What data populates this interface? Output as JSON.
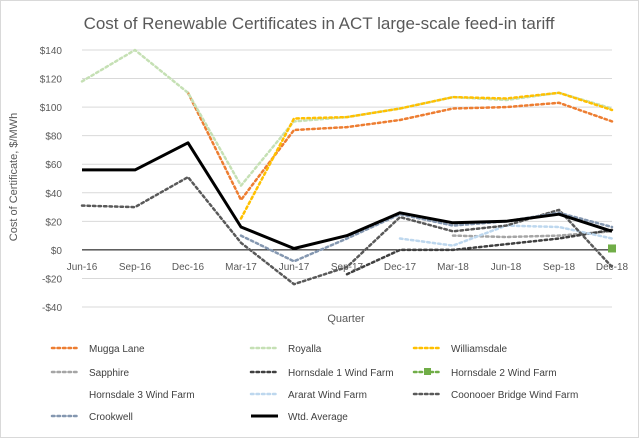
{
  "chart_data": {
    "type": "line",
    "title": "Cost of Renewable Certificates in ACT large-scale feed-in tariff",
    "xlabel": "Quarter",
    "ylabel": "Cost of Certificate, $/MWh",
    "ylim": [
      -40,
      140
    ],
    "yticks": [
      -40,
      -20,
      0,
      20,
      40,
      60,
      80,
      100,
      120,
      140
    ],
    "ytick_labels": [
      "-$40",
      "-$20",
      "$0",
      "$20",
      "$40",
      "$60",
      "$80",
      "$100",
      "$120",
      "$140"
    ],
    "grid": true,
    "legend_position": "bottom",
    "categories": [
      "Jun-16",
      "Sep-16",
      "Dec-16",
      "Mar-17",
      "Jun-17",
      "Sep-17",
      "Dec-17",
      "Mar-18",
      "Jun-18",
      "Sep-18",
      "Dec-18"
    ],
    "series": [
      {
        "name": "Mugga Lane",
        "color": "#ed7d31",
        "style": "dotted",
        "values": [
          null,
          null,
          110,
          35,
          84,
          86,
          91,
          99,
          100,
          103,
          90
        ]
      },
      {
        "name": "Royalla",
        "color": "#c5e0b4",
        "style": "dotted",
        "values": [
          118,
          140,
          110,
          45,
          90,
          93,
          99,
          107,
          105,
          110,
          99
        ]
      },
      {
        "name": "Williamsdale",
        "color": "#ffc000",
        "style": "dotted",
        "values": [
          null,
          null,
          null,
          22,
          92,
          93,
          99,
          107,
          106,
          110,
          98
        ]
      },
      {
        "name": "Sapphire",
        "color": "#a5a5a5",
        "style": "dotted",
        "values": [
          null,
          null,
          null,
          null,
          null,
          null,
          null,
          10,
          9,
          10,
          13
        ]
      },
      {
        "name": "Hornsdale 1 Wind Farm",
        "color": "#404040",
        "style": "dotted",
        "values": [
          null,
          null,
          null,
          null,
          null,
          -17,
          0,
          0,
          4,
          8,
          14
        ]
      },
      {
        "name": "Hornsdale 2 Wind Farm",
        "color": "#70ad47",
        "style": "dotted",
        "values": [
          null,
          null,
          null,
          null,
          null,
          null,
          null,
          null,
          null,
          null,
          1
        ]
      },
      {
        "name": "Hornsdale 3 Wind Farm",
        "color": "#ffffff",
        "style": "dotted",
        "values": [
          null,
          null,
          null,
          null,
          null,
          null,
          null,
          null,
          null,
          null,
          null
        ]
      },
      {
        "name": "Ararat Wind Farm",
        "color": "#bdd7ee",
        "style": "dotted",
        "values": [
          null,
          null,
          null,
          null,
          null,
          null,
          8,
          3,
          17,
          16,
          8
        ]
      },
      {
        "name": "Coonooer Bridge Wind Farm",
        "color": "#595959",
        "style": "dotted",
        "values": [
          31,
          30,
          51,
          5,
          -24,
          -12,
          23,
          13,
          17,
          28,
          -12
        ]
      },
      {
        "name": "Crookwell",
        "color": "#8497b0",
        "style": "dotted",
        "values": [
          null,
          null,
          null,
          10,
          -8,
          8,
          25,
          17,
          20,
          26,
          16
        ]
      },
      {
        "name": "Wtd. Average",
        "color": "#000000",
        "style": "solid",
        "values": [
          56,
          56,
          75,
          16,
          1,
          10,
          26,
          19,
          20,
          25,
          13
        ]
      }
    ]
  }
}
